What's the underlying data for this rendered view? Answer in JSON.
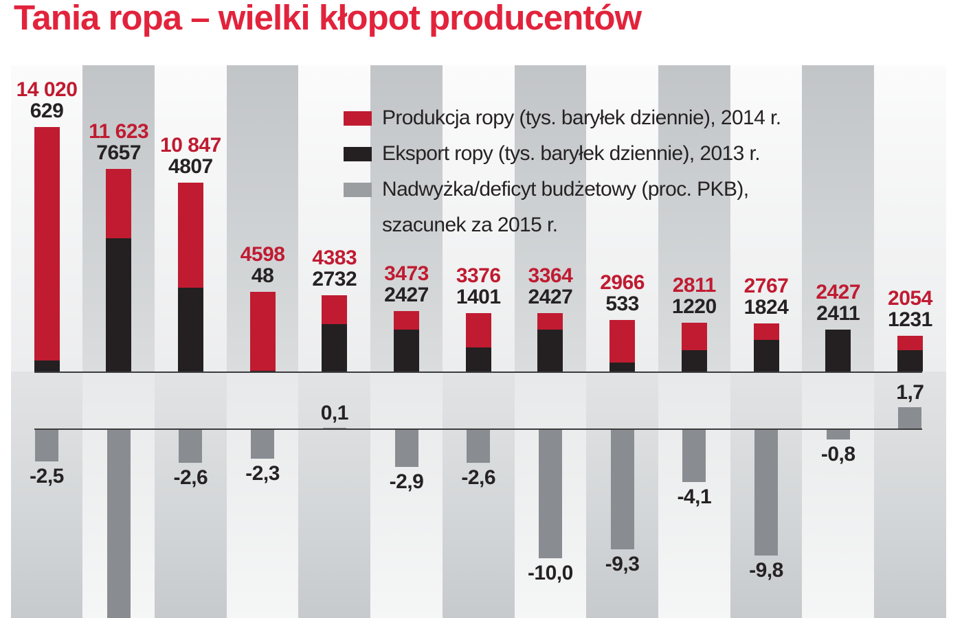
{
  "title": {
    "text": "Tania ropa – wielki kłopot producentów",
    "color": "#e2233c"
  },
  "legend": {
    "items": [
      {
        "label": "Produkcja ropy (tys. baryłek dziennie), 2014 r.",
        "color": "#c01b31"
      },
      {
        "label": "Eksport ropy (tys. baryłek dziennie), 2013 r.",
        "color": "#242021"
      },
      {
        "label": "Nadwyżka/deficyt budżetowy (proc. PKB),",
        "color": "#9b9ea1"
      },
      {
        "label": "szacunek za 2015 r.",
        "color": null
      }
    ]
  },
  "chart_data": {
    "type": "bar",
    "title": "Tania ropa – wielki kłopot producentów",
    "series": [
      {
        "name": "Produkcja ropy (tys. baryłek dziennie), 2014 r.",
        "color": "#c01b31"
      },
      {
        "name": "Eksport ropy (tys. baryłek dziennie), 2013 r.",
        "color": "#242021"
      },
      {
        "name": "Nadwyżka/deficyt budżetowy (proc. PKB), szacunek za 2015 r.",
        "color": "#898c90"
      }
    ],
    "layout_hints": {
      "upper_axis": "production and export bars share one baseline, export drawn in front of production",
      "lower_axis": "budget surplus/deficit bars hang from a separate zero line, positive values rise above it",
      "grid": "off",
      "legend_position": "top-right inside plot",
      "background": "alternating vertical gray bands, inverted below the production baseline"
    },
    "columns": [
      {
        "production": 14020,
        "production_label": "14 020",
        "export": 629,
        "export_label": "629",
        "budget": -2.5,
        "budget_label": "-2,5"
      },
      {
        "production": 11623,
        "production_label": "11 623",
        "export": 7657,
        "export_label": "7657",
        "budget": null,
        "budget_label": "",
        "budget_clipped": true
      },
      {
        "production": 10847,
        "production_label": "10 847",
        "export": 4807,
        "export_label": "4807",
        "budget": -2.6,
        "budget_label": "-2,6"
      },
      {
        "production": 4598,
        "production_label": "4598",
        "export": 48,
        "export_label": "48",
        "budget": -2.3,
        "budget_label": "-2,3"
      },
      {
        "production": 4383,
        "production_label": "4383",
        "export": 2732,
        "export_label": "2732",
        "budget": 0.1,
        "budget_label": "0,1"
      },
      {
        "production": 3473,
        "production_label": "3473",
        "export": 2427,
        "export_label": "2427",
        "budget": -2.9,
        "budget_label": "-2,9"
      },
      {
        "production": 3376,
        "production_label": "3376",
        "export": 1401,
        "export_label": "1401",
        "budget": -2.6,
        "budget_label": "-2,6"
      },
      {
        "production": 3364,
        "production_label": "3364",
        "export": 2427,
        "export_label": "2427",
        "budget": -10.0,
        "budget_label": "-10,0"
      },
      {
        "production": 2966,
        "production_label": "2966",
        "export": 533,
        "export_label": "533",
        "budget": -9.3,
        "budget_label": "-9,3"
      },
      {
        "production": 2811,
        "production_label": "2811",
        "export": 1220,
        "export_label": "1220",
        "budget": -4.1,
        "budget_label": "-4,1"
      },
      {
        "production": 2767,
        "production_label": "2767",
        "export": 1824,
        "export_label": "1824",
        "budget": -9.8,
        "budget_label": "-9,8"
      },
      {
        "production": 2427,
        "production_label": "2427",
        "export": 2411,
        "export_label": "2411",
        "budget": -0.8,
        "budget_label": "-0,8"
      },
      {
        "production": 2054,
        "production_label": "2054",
        "export": 1231,
        "export_label": "1231",
        "budget": 1.7,
        "budget_label": "1,7"
      }
    ]
  },
  "colors": {
    "title_red": "#e2233c",
    "production_red": "#c01b31",
    "export_black": "#242021",
    "budget_gray": "#898c90",
    "legend_gray_swatch": "#9b9ea1",
    "axis_line": "#3c3c3c",
    "value_label_red": "#c01b31",
    "value_label_black": "#262223"
  }
}
